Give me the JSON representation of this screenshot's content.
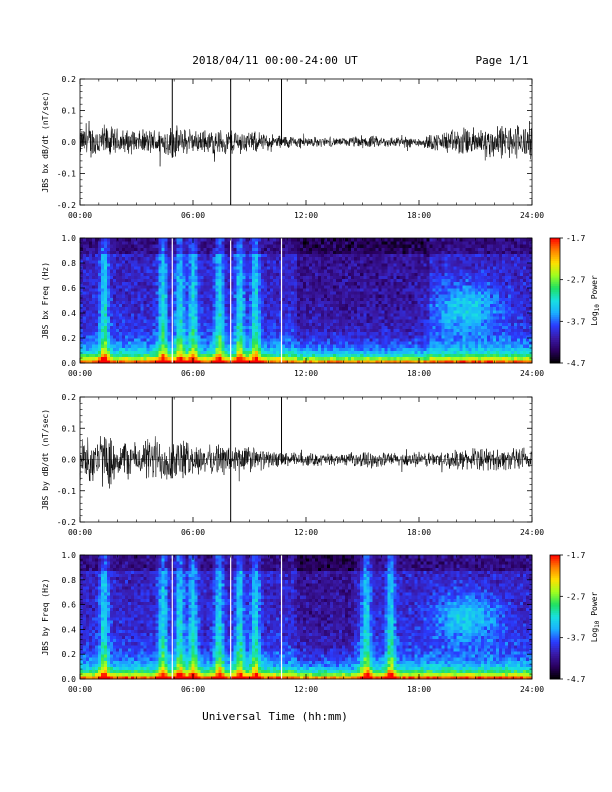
{
  "header": {
    "date_range": "2018/04/11  00:00-24:00 UT",
    "page": "Page 1/1"
  },
  "xlabel": "Universal Time (hh:mm)",
  "colors": {
    "trace": "#000000",
    "colormap": [
      "#000000",
      "#2a0060",
      "#3a1aa8",
      "#2a3cff",
      "#1ab0ff",
      "#18e0e0",
      "#20e060",
      "#a0ff20",
      "#ffe000",
      "#ff8000",
      "#ff0000"
    ]
  },
  "chart_data": [
    {
      "type": "line",
      "name": "bx_timeseries",
      "ylabel": "JBS bx dB/dt (nT/sec)",
      "xlim": [
        0,
        24
      ],
      "ylim": [
        -0.2,
        0.2
      ],
      "xticks": [
        "00:00",
        "06:00",
        "12:00",
        "18:00",
        "24:00"
      ],
      "yticks": [
        "-0.2",
        "-0.1",
        "0.0",
        "0.1",
        "0.2"
      ],
      "envelope": [
        {
          "x": 0,
          "amp": 0.05
        },
        {
          "x": 1,
          "amp": 0.07
        },
        {
          "x": 2,
          "amp": 0.05
        },
        {
          "x": 3,
          "amp": 0.04
        },
        {
          "x": 4,
          "amp": 0.05
        },
        {
          "x": 5,
          "amp": 0.06
        },
        {
          "x": 6,
          "amp": 0.04
        },
        {
          "x": 8,
          "amp": 0.05
        },
        {
          "x": 9,
          "amp": 0.04
        },
        {
          "x": 10,
          "amp": 0.03
        },
        {
          "x": 12,
          "amp": 0.02
        },
        {
          "x": 14,
          "amp": 0.015
        },
        {
          "x": 15,
          "amp": 0.025
        },
        {
          "x": 16,
          "amp": 0.02
        },
        {
          "x": 18,
          "amp": 0.02
        },
        {
          "x": 19,
          "amp": 0.035
        },
        {
          "x": 20,
          "amp": 0.05
        },
        {
          "x": 22,
          "amp": 0.06
        },
        {
          "x": 24,
          "amp": 0.07
        }
      ],
      "spikes": [
        {
          "x": 4.9,
          "ymin": -0.05,
          "ymax": 0.2
        },
        {
          "x": 8.0,
          "ymin": -0.2,
          "ymax": 0.2
        },
        {
          "x": 10.7,
          "ymin": -0.01,
          "ymax": 0.2
        }
      ]
    },
    {
      "type": "heatmap",
      "name": "bx_spectrogram",
      "ylabel": "JBS bx Freq (Hz)",
      "xlim": [
        0,
        24
      ],
      "ylim": [
        0,
        1.0
      ],
      "xticks": [
        "00:00",
        "06:00",
        "12:00",
        "18:00",
        "24:00"
      ],
      "yticks": [
        "0.0",
        "0.2",
        "0.4",
        "0.6",
        "0.8",
        "1.0"
      ],
      "colorbar": {
        "label": "Log10 Power",
        "range": [
          -4.7,
          -1.7
        ],
        "ticks": [
          "-1.7",
          "-2.7",
          "-3.7",
          "-4.7"
        ]
      },
      "gaps": [
        4.9,
        8.0,
        10.7
      ],
      "bright_bands": [
        1.3,
        4.4,
        5.3,
        6.0,
        7.4,
        8.5,
        9.3
      ],
      "quiet_interval": [
        11.5,
        18.5
      ],
      "arc_center": [
        20.5,
        0.45
      ]
    },
    {
      "type": "line",
      "name": "by_timeseries",
      "ylabel": "JBS by dB/dt (nT/sec)",
      "xlim": [
        0,
        24
      ],
      "ylim": [
        -0.2,
        0.2
      ],
      "xticks": [
        "00:00",
        "06:00",
        "12:00",
        "18:00",
        "24:00"
      ],
      "yticks": [
        "-0.2",
        "-0.1",
        "0.0",
        "0.1",
        "0.2"
      ],
      "envelope": [
        {
          "x": 0,
          "amp": 0.08
        },
        {
          "x": 1,
          "amp": 0.1
        },
        {
          "x": 2,
          "amp": 0.08
        },
        {
          "x": 3,
          "amp": 0.06
        },
        {
          "x": 4,
          "amp": 0.09
        },
        {
          "x": 5,
          "amp": 0.08
        },
        {
          "x": 6,
          "amp": 0.06
        },
        {
          "x": 7,
          "amp": 0.05
        },
        {
          "x": 8,
          "amp": 0.06
        },
        {
          "x": 9,
          "amp": 0.05
        },
        {
          "x": 10,
          "amp": 0.03
        },
        {
          "x": 12,
          "amp": 0.025
        },
        {
          "x": 14,
          "amp": 0.02
        },
        {
          "x": 15,
          "amp": 0.03
        },
        {
          "x": 17,
          "amp": 0.025
        },
        {
          "x": 19,
          "amp": 0.03
        },
        {
          "x": 21,
          "amp": 0.04
        },
        {
          "x": 23,
          "amp": 0.04
        },
        {
          "x": 24,
          "amp": 0.05
        }
      ],
      "spikes": [
        {
          "x": 4.9,
          "ymin": -0.06,
          "ymax": 0.2
        },
        {
          "x": 8.0,
          "ymin": -0.2,
          "ymax": 0.2
        },
        {
          "x": 10.7,
          "ymin": -0.01,
          "ymax": 0.2
        }
      ]
    },
    {
      "type": "heatmap",
      "name": "by_spectrogram",
      "ylabel": "JBS by Freq (Hz)",
      "xlim": [
        0,
        24
      ],
      "ylim": [
        0,
        1.0
      ],
      "xticks": [
        "00:00",
        "06:00",
        "12:00",
        "18:00",
        "24:00"
      ],
      "yticks": [
        "0.0",
        "0.2",
        "0.4",
        "0.6",
        "0.8",
        "1.0"
      ],
      "colorbar": {
        "label": "Log10 Power",
        "range": [
          -4.7,
          -1.7
        ],
        "ticks": [
          "-1.7",
          "-2.7",
          "-3.7",
          "-4.7"
        ]
      },
      "gaps": [
        4.9,
        8.0,
        10.7
      ],
      "bright_bands": [
        1.3,
        4.4,
        5.3,
        6.0,
        7.4,
        8.5,
        9.3,
        15.2,
        16.5
      ],
      "quiet_interval": [
        11.5,
        14.5
      ],
      "arc_center": [
        20.5,
        0.5
      ]
    }
  ]
}
